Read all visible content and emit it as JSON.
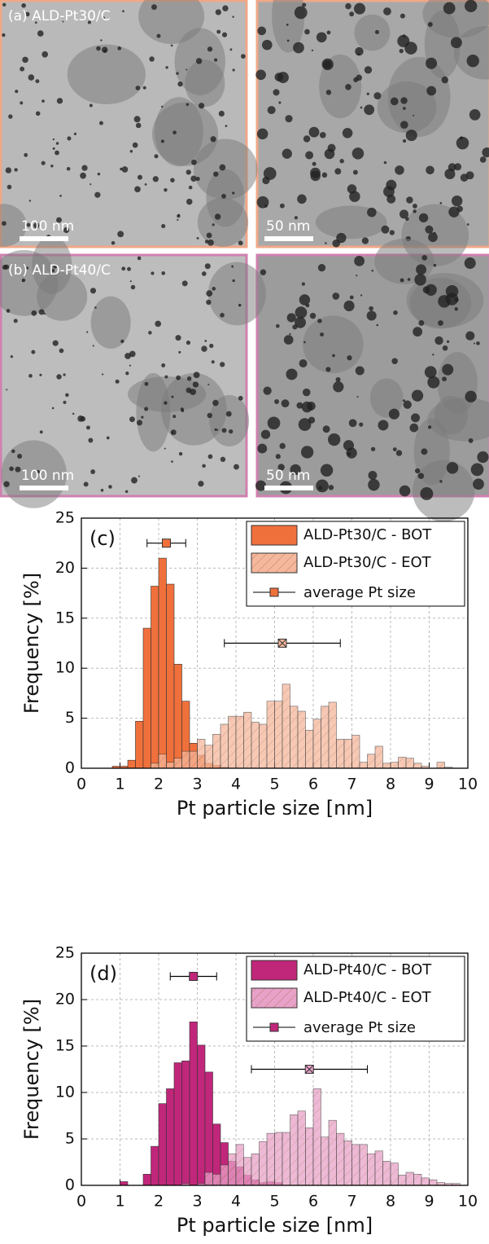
{
  "figure": {
    "panels": [
      {
        "label": "(a) ALD-Pt30/C",
        "scale_bars": [
          "100 nm",
          "50 nm"
        ]
      },
      {
        "label": "(b) ALD-Pt40/C",
        "scale_bars": [
          "100 nm",
          "50 nm"
        ]
      }
    ]
  },
  "chart_data": [
    {
      "type": "histogram",
      "panel_label": "(c)",
      "x_label": "Pt particle size [nm]",
      "y_label": "Frequency [%]",
      "xlim": [
        0,
        10
      ],
      "ylim": [
        0,
        25
      ],
      "xticks": [
        0,
        1,
        2,
        3,
        4,
        5,
        6,
        7,
        8,
        9,
        10
      ],
      "yticks": [
        0,
        5,
        10,
        15,
        20,
        25
      ],
      "grid": true,
      "legend": "upper right",
      "average_label": "average Pt size",
      "bins": [
        0,
        0.2,
        0.4,
        0.6,
        0.8,
        1,
        1.2,
        1.4,
        1.6,
        1.8,
        2,
        2.2,
        2.4,
        2.6,
        2.8,
        3,
        3.2,
        3.4,
        3.6,
        3.8,
        4,
        4.2,
        4.4,
        4.6,
        4.8,
        5,
        5.2,
        5.4,
        5.6,
        5.8,
        6,
        6.2,
        6.4,
        6.6,
        6.8,
        7,
        7.2,
        7.4,
        7.6,
        7.8,
        8,
        8.2,
        8.4,
        8.6,
        8.8,
        9,
        9.2,
        9.4,
        9.6,
        9.8,
        10
      ],
      "series": [
        {
          "name": "ALD-Pt30/C - BOT",
          "color": "#f0703c",
          "hatch": false,
          "values": [
            0,
            0,
            0,
            0,
            0.2,
            0.2,
            0.8,
            4.7,
            14,
            18.2,
            21,
            18.4,
            10.4,
            6.7,
            2.5,
            1.3,
            0.5,
            0.3,
            0.1,
            0,
            0,
            0,
            0,
            0,
            0,
            0,
            0,
            0,
            0,
            0,
            0,
            0,
            0,
            0,
            0,
            0,
            0,
            0,
            0,
            0,
            0,
            0,
            0,
            0,
            0,
            0,
            0,
            0,
            0,
            0
          ],
          "average": {
            "mean": 2.2,
            "sd": 0.5,
            "y": 22.5
          }
        },
        {
          "name": "ALD-Pt30/C - EOT",
          "color": "#f5b89c",
          "hatch": true,
          "values": [
            0,
            0,
            0,
            0,
            0,
            0,
            0,
            0,
            0,
            0.5,
            1.4,
            0.6,
            1,
            1.7,
            1.7,
            2.9,
            2.3,
            3.4,
            4.4,
            5.2,
            5.2,
            5.6,
            4.6,
            4.4,
            6.7,
            6.7,
            8.4,
            6.2,
            5.7,
            3.8,
            4.9,
            6.2,
            6.6,
            2.9,
            2.9,
            3.3,
            0.6,
            1.4,
            2.2,
            0.5,
            0.6,
            1.1,
            1,
            0.5,
            0.2,
            0,
            0.6,
            0.1,
            0,
            0
          ],
          "average": {
            "mean": 5.2,
            "sd": 1.5,
            "y": 12.5
          }
        }
      ]
    },
    {
      "type": "histogram",
      "panel_label": "(d)",
      "x_label": "Pt particle size [nm]",
      "y_label": "Frequency [%]",
      "xlim": [
        0,
        10
      ],
      "ylim": [
        0,
        25
      ],
      "xticks": [
        0,
        1,
        2,
        3,
        4,
        5,
        6,
        7,
        8,
        9,
        10
      ],
      "yticks": [
        0,
        5,
        10,
        15,
        20,
        25
      ],
      "grid": true,
      "legend": "upper right",
      "average_label": "average Pt size",
      "bins": [
        0,
        0.2,
        0.4,
        0.6,
        0.8,
        1,
        1.2,
        1.4,
        1.6,
        1.8,
        2,
        2.2,
        2.4,
        2.6,
        2.8,
        3,
        3.2,
        3.4,
        3.6,
        3.8,
        4,
        4.2,
        4.4,
        4.6,
        4.8,
        5,
        5.2,
        5.4,
        5.6,
        5.8,
        6,
        6.2,
        6.4,
        6.6,
        6.8,
        7,
        7.2,
        7.4,
        7.6,
        7.8,
        8,
        8.2,
        8.4,
        8.6,
        8.8,
        9,
        9.2,
        9.4,
        9.6,
        9.8,
        10
      ],
      "series": [
        {
          "name": "ALD-Pt40/C - BOT",
          "color": "#c0277a",
          "hatch": false,
          "values": [
            0,
            0,
            0,
            0,
            0,
            0.4,
            0,
            0,
            1.2,
            4.2,
            8.8,
            10.4,
            13.2,
            13.4,
            17.6,
            15.1,
            12.2,
            6.6,
            4.6,
            2.6,
            2,
            1.1,
            0.6,
            0.3,
            0.4,
            0.3,
            0,
            0,
            0,
            0,
            0,
            0,
            0,
            0,
            0,
            0,
            0,
            0,
            0,
            0,
            0,
            0,
            0,
            0,
            0,
            0,
            0,
            0,
            0,
            0
          ],
          "average": {
            "mean": 2.9,
            "sd": 0.6,
            "y": 22.5
          }
        },
        {
          "name": "ALD-Pt40/C - EOT",
          "color": "#e8a2c8",
          "hatch": true,
          "values": [
            0,
            0,
            0,
            0,
            0,
            0,
            0,
            0,
            0,
            0,
            0,
            0,
            0,
            0.2,
            0,
            0.2,
            1.4,
            1.2,
            2.2,
            3.4,
            4.4,
            3,
            3.4,
            4.7,
            5.6,
            5.7,
            5.7,
            7.6,
            8,
            6.2,
            10.4,
            5.2,
            7,
            5.6,
            4.8,
            4.4,
            4.4,
            3.4,
            3.7,
            2.6,
            2.4,
            1.1,
            1.4,
            1.2,
            0.8,
            0.6,
            0.3,
            0.2,
            0.2,
            0
          ],
          "average": {
            "mean": 5.9,
            "sd": 1.5,
            "y": 12.5
          }
        }
      ]
    }
  ]
}
